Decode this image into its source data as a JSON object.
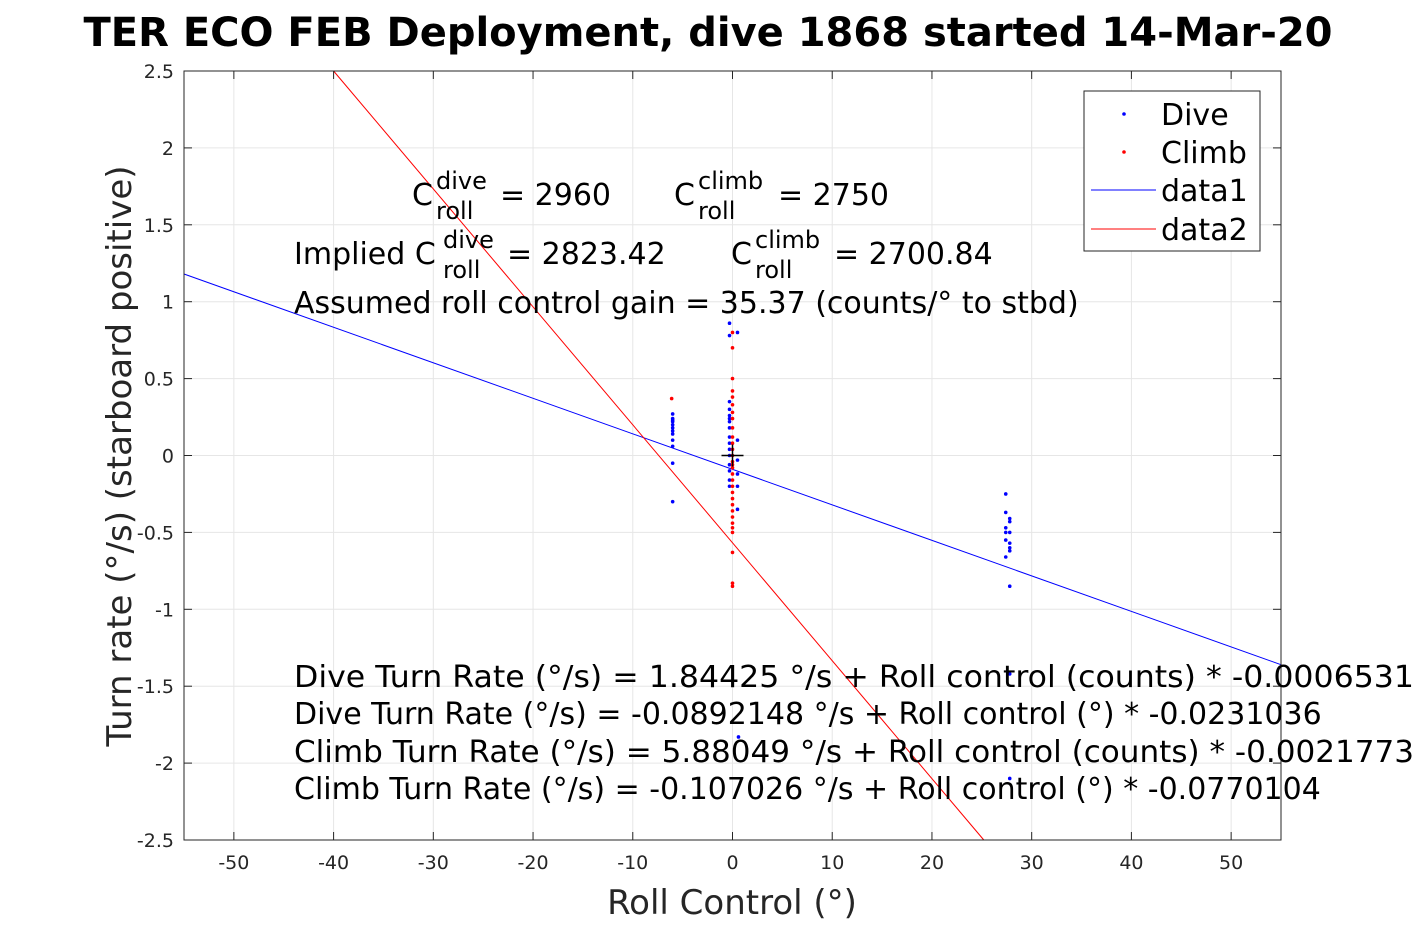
{
  "chart_data": {
    "type": "scatter",
    "title": "TER ECO FEB Deployment, dive 1868 started 14-Mar-20",
    "xlabel": "Roll Control (°)",
    "ylabel": "Turn rate (°/s) (starboard positive)",
    "xlim": [
      -55,
      55
    ],
    "ylim": [
      -2.5,
      2.5
    ],
    "xticks": [
      "-50",
      "-40",
      "-30",
      "-20",
      "-10",
      "0",
      "10",
      "20",
      "30",
      "40",
      "50"
    ],
    "yticks": [
      "2.5",
      "2",
      "1.5",
      "1",
      "0.5",
      "0",
      "-0.5",
      "-1",
      "-1.5",
      "-2",
      "-2.5"
    ],
    "grid": true,
    "legend_position": "top-right",
    "colors": {
      "dive": "#0000ff",
      "climb": "#ff0000",
      "axis": "#262626",
      "grid": "#e6e6e6"
    },
    "legend": {
      "dive": "Dive",
      "climb": "Climb",
      "data1": "data1",
      "data2": "data2"
    },
    "annotations": {
      "c_dive_base": "C",
      "c_dive_sup": "dive",
      "c_dive_sub": "roll",
      "c_dive_value": "= 2960",
      "c_climb_base": "C",
      "c_climb_sup": "climb",
      "c_climb_sub": "roll",
      "c_climb_value": "= 2750",
      "implied_prefix": "Implied C",
      "implied_dive_sup": "dive",
      "implied_dive_sub": "roll",
      "implied_dive_value": "= 2823.42",
      "implied_climb_base": "C",
      "implied_climb_sup": "climb",
      "implied_climb_sub": "roll",
      "implied_climb_value": "= 2700.84",
      "gain": "Assumed roll control gain = 35.37 (counts/° to stbd)",
      "eq1": "Dive Turn Rate (°/s) = 1.84425 °/s + Roll control (counts) * -0.0006531",
      "eq2": "Dive Turn Rate (°/s) = -0.0892148 °/s + Roll control (°) * -0.0231036",
      "eq3": "Climb Turn Rate (°/s) = 5.88049 °/s + Roll control (counts) * -0.0021773",
      "eq4": "Climb Turn Rate (°/s) = -0.107026 °/s + Roll control (°) * -0.0770104"
    },
    "series": [
      {
        "name": "Dive",
        "mode": "markers",
        "x": [
          -6,
          -6,
          -6,
          -6,
          -6,
          -6,
          -6,
          -6,
          -6,
          -6,
          -6,
          -6,
          -0.3,
          -0.3,
          -0.3,
          -0.3,
          -0.3,
          -0.3,
          -0.3,
          -0.3,
          -0.3,
          -0.3,
          -0.3,
          -0.3,
          -0.3,
          -0.3,
          -0.3,
          -0.3,
          0.5,
          0.5,
          0.5,
          0.5,
          0.5,
          0.5,
          0.6,
          27.4,
          27.4,
          27.4,
          27.4,
          27.4,
          27.4,
          27.8,
          27.8,
          27.8,
          27.8,
          27.8,
          27.8,
          27.8,
          27.8,
          27.8
        ],
        "y": [
          0.27,
          0.24,
          0.22,
          0.2,
          0.18,
          0.16,
          0.14,
          0.1,
          0.06,
          -0.05,
          -0.3,
          0.23,
          0.86,
          0.78,
          0.35,
          0.24,
          0.22,
          0.18,
          0.12,
          0.08,
          0.04,
          0.0,
          -0.06,
          -0.1,
          -0.16,
          -0.2,
          0.3,
          0.26,
          0.8,
          0.1,
          -0.03,
          -0.12,
          -0.2,
          -0.35,
          -1.83,
          -0.25,
          -0.37,
          -0.47,
          -0.5,
          -0.55,
          -0.66,
          -0.41,
          -0.43,
          -0.5,
          -0.57,
          -0.6,
          -0.62,
          -0.85,
          -1.42,
          -2.1
        ]
      },
      {
        "name": "Climb",
        "mode": "markers",
        "x": [
          -6.1,
          0,
          0,
          0,
          0,
          0,
          0,
          0,
          0,
          0,
          0,
          0,
          0,
          0,
          0,
          0,
          0,
          0,
          0,
          0,
          0,
          0,
          0,
          0,
          0,
          0,
          0,
          0,
          0,
          0,
          0
        ],
        "y": [
          0.37,
          0.8,
          0.7,
          0.5,
          0.42,
          0.38,
          0.33,
          0.28,
          0.24,
          0.18,
          0.12,
          0.08,
          0.04,
          0.0,
          -0.04,
          -0.08,
          -0.12,
          -0.16,
          -0.2,
          -0.24,
          -0.28,
          -0.32,
          -0.36,
          -0.4,
          -0.44,
          -0.47,
          -0.5,
          -0.63,
          -0.83,
          -0.85,
          -0.06
        ]
      },
      {
        "name": "data1",
        "mode": "line",
        "x": [
          -55,
          55
        ],
        "y": [
          1.18,
          -1.36
        ]
      },
      {
        "name": "data2",
        "mode": "line",
        "x": [
          -40,
          25.2
        ],
        "y": [
          2.5,
          -2.5
        ]
      }
    ],
    "origin_marker": {
      "x": 0,
      "y": 0,
      "symbol": "+"
    }
  }
}
